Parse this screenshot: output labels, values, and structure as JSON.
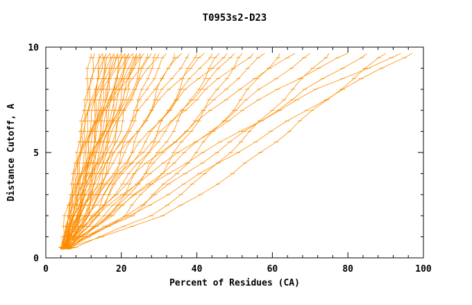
{
  "chart_data": {
    "type": "line",
    "title": "T0953s2-D23",
    "xlabel": "Percent of Residues (CA)",
    "ylabel": "Distance Cutoff, A",
    "xlim": [
      0,
      100
    ],
    "ylim": [
      0,
      10
    ],
    "x_major_ticks": [
      0,
      20,
      40,
      60,
      80,
      100
    ],
    "x_minor_step": 4,
    "y_major_ticks": [
      0,
      5,
      10
    ],
    "y_minor_step": 1,
    "grid": "off",
    "legend": "none",
    "line_color": "#ff8c00",
    "axis_color": "#000000",
    "background": "#ffffff",
    "cutoffs": [
      0.4,
      2,
      4,
      6,
      8,
      9.7
    ],
    "series": [
      {
        "x": [
          4.0,
          6.6,
          8.2,
          9.6,
          10.9,
          12.0
        ]
      },
      {
        "x": [
          4.5,
          6.2,
          7.9,
          9.6,
          11.3,
          13.0
        ]
      },
      {
        "x": [
          5.0,
          6.1,
          7.7,
          9.7,
          11.8,
          14.0
        ]
      },
      {
        "x": [
          4.0,
          6.2,
          8.4,
          10.6,
          12.8,
          15.0
        ]
      },
      {
        "x": [
          5.5,
          8.5,
          10.5,
          12.2,
          13.7,
          15.0
        ]
      },
      {
        "x": [
          4.0,
          5.4,
          7.6,
          10.2,
          13.0,
          16.0
        ]
      },
      {
        "x": [
          6.0,
          8.0,
          10.0,
          12.0,
          14.0,
          16.0
        ]
      },
      {
        "x": [
          4.5,
          8.5,
          11.1,
          13.3,
          15.3,
          17.0
        ]
      },
      {
        "x": [
          5.0,
          6.4,
          8.6,
          11.2,
          14.0,
          17.0
        ]
      },
      {
        "x": [
          4.0,
          6.8,
          9.6,
          12.4,
          15.2,
          18.0
        ]
      },
      {
        "x": [
          6.0,
          9.8,
          12.4,
          14.4,
          16.3,
          18.0
        ]
      },
      {
        "x": [
          4.5,
          6.2,
          8.9,
          12.0,
          15.4,
          19.0
        ]
      },
      {
        "x": [
          5.0,
          7.8,
          10.6,
          13.4,
          16.2,
          19.0
        ]
      },
      {
        "x": [
          4.0,
          9.1,
          12.5,
          15.2,
          17.8,
          20.0
        ]
      },
      {
        "x": [
          5.5,
          7.2,
          9.9,
          13.0,
          16.4,
          20.0
        ]
      },
      {
        "x": [
          4.0,
          7.4,
          10.8,
          14.2,
          17.6,
          21.0
        ]
      },
      {
        "x": [
          6.0,
          10.8,
          14.0,
          16.5,
          18.9,
          21.0
        ]
      },
      {
        "x": [
          4.5,
          6.6,
          9.8,
          13.6,
          17.6,
          22.0
        ]
      },
      {
        "x": [
          5.0,
          8.4,
          11.8,
          15.2,
          18.6,
          22.0
        ]
      },
      {
        "x": [
          4.0,
          10.1,
          14.1,
          17.3,
          20.3,
          23.0
        ]
      },
      {
        "x": [
          5.5,
          7.6,
          10.8,
          14.6,
          18.6,
          23.0
        ]
      },
      {
        "x": [
          4.0,
          8.0,
          12.0,
          16.0,
          20.0,
          24.0
        ]
      },
      {
        "x": [
          6.0,
          11.8,
          15.5,
          18.6,
          21.5,
          24.0
        ]
      },
      {
        "x": [
          4.5,
          7.0,
          10.7,
          15.2,
          19.9,
          25.0
        ]
      },
      {
        "x": [
          5.0,
          9.0,
          13.0,
          17.0,
          21.0,
          25.0
        ]
      },
      {
        "x": [
          4.0,
          11.0,
          15.7,
          19.4,
          22.9,
          26.0
        ]
      },
      {
        "x": [
          5.5,
          8.1,
          12.0,
          16.7,
          21.6,
          27.0
        ]
      },
      {
        "x": [
          4.0,
          8.8,
          13.6,
          18.4,
          23.2,
          28.0
        ]
      },
      {
        "x": [
          6.0,
          13.4,
          18.2,
          22.1,
          25.8,
          29.0
        ]
      },
      {
        "x": [
          4.5,
          7.6,
          12.2,
          17.8,
          23.6,
          30.0
        ]
      },
      {
        "x": [
          5.0,
          10.4,
          15.8,
          21.2,
          26.6,
          32.0
        ]
      },
      {
        "x": [
          4.0,
          13.6,
          19.9,
          25.0,
          29.8,
          34.0
        ]
      },
      {
        "x": [
          5.5,
          9.2,
          14.7,
          21.4,
          28.4,
          36.0
        ]
      },
      {
        "x": [
          4.0,
          10.8,
          17.6,
          24.4,
          31.2,
          38.0
        ]
      },
      {
        "x": [
          6.0,
          16.9,
          24.0,
          29.8,
          35.2,
          40.0
        ]
      },
      {
        "x": [
          4.5,
          9.0,
          15.8,
          24.0,
          32.6,
          42.0
        ]
      },
      {
        "x": [
          5.0,
          12.8,
          20.6,
          28.4,
          36.2,
          44.0
        ]
      },
      {
        "x": [
          4.0,
          17.4,
          26.3,
          33.4,
          40.1,
          46.0
        ]
      },
      {
        "x": [
          5.5,
          10.6,
          18.3,
          27.6,
          37.4,
          48.0
        ]
      },
      {
        "x": [
          4.0,
          13.2,
          22.4,
          31.6,
          40.8,
          50.0
        ]
      },
      {
        "x": [
          6.0,
          20.7,
          30.4,
          38.2,
          45.6,
          52.0
        ]
      },
      {
        "x": [
          4.5,
          10.6,
          19.7,
          30.8,
          42.4,
          55.0
        ]
      },
      {
        "x": [
          5.0,
          15.6,
          26.2,
          36.8,
          47.4,
          58.0
        ]
      },
      {
        "x": [
          4.0,
          22.6,
          34.7,
          44.6,
          53.9,
          62.0
        ]
      },
      {
        "x": [
          5.5,
          12.8,
          23.7,
          37.0,
          50.9,
          66.0
        ]
      },
      {
        "x": [
          4.0,
          17.2,
          30.4,
          43.6,
          56.8,
          70.0
        ]
      },
      {
        "x": [
          6.0,
          28.1,
          42.6,
          54.3,
          65.3,
          75.0
        ]
      },
      {
        "x": [
          4.5,
          13.6,
          27.2,
          43.8,
          61.1,
          80.0
        ]
      },
      {
        "x": [
          5.0,
          21.0,
          37.0,
          53.0,
          69.0,
          85.0
        ]
      },
      {
        "x": [
          4.0,
          31.5,
          49.6,
          64.2,
          77.8,
          90.0
        ]
      },
      {
        "x": [
          5.5,
          16.1,
          32.1,
          51.5,
          71.9,
          94.0
        ]
      },
      {
        "x": [
          4.0,
          22.6,
          41.2,
          59.8,
          78.4,
          97.0
        ]
      }
    ]
  }
}
